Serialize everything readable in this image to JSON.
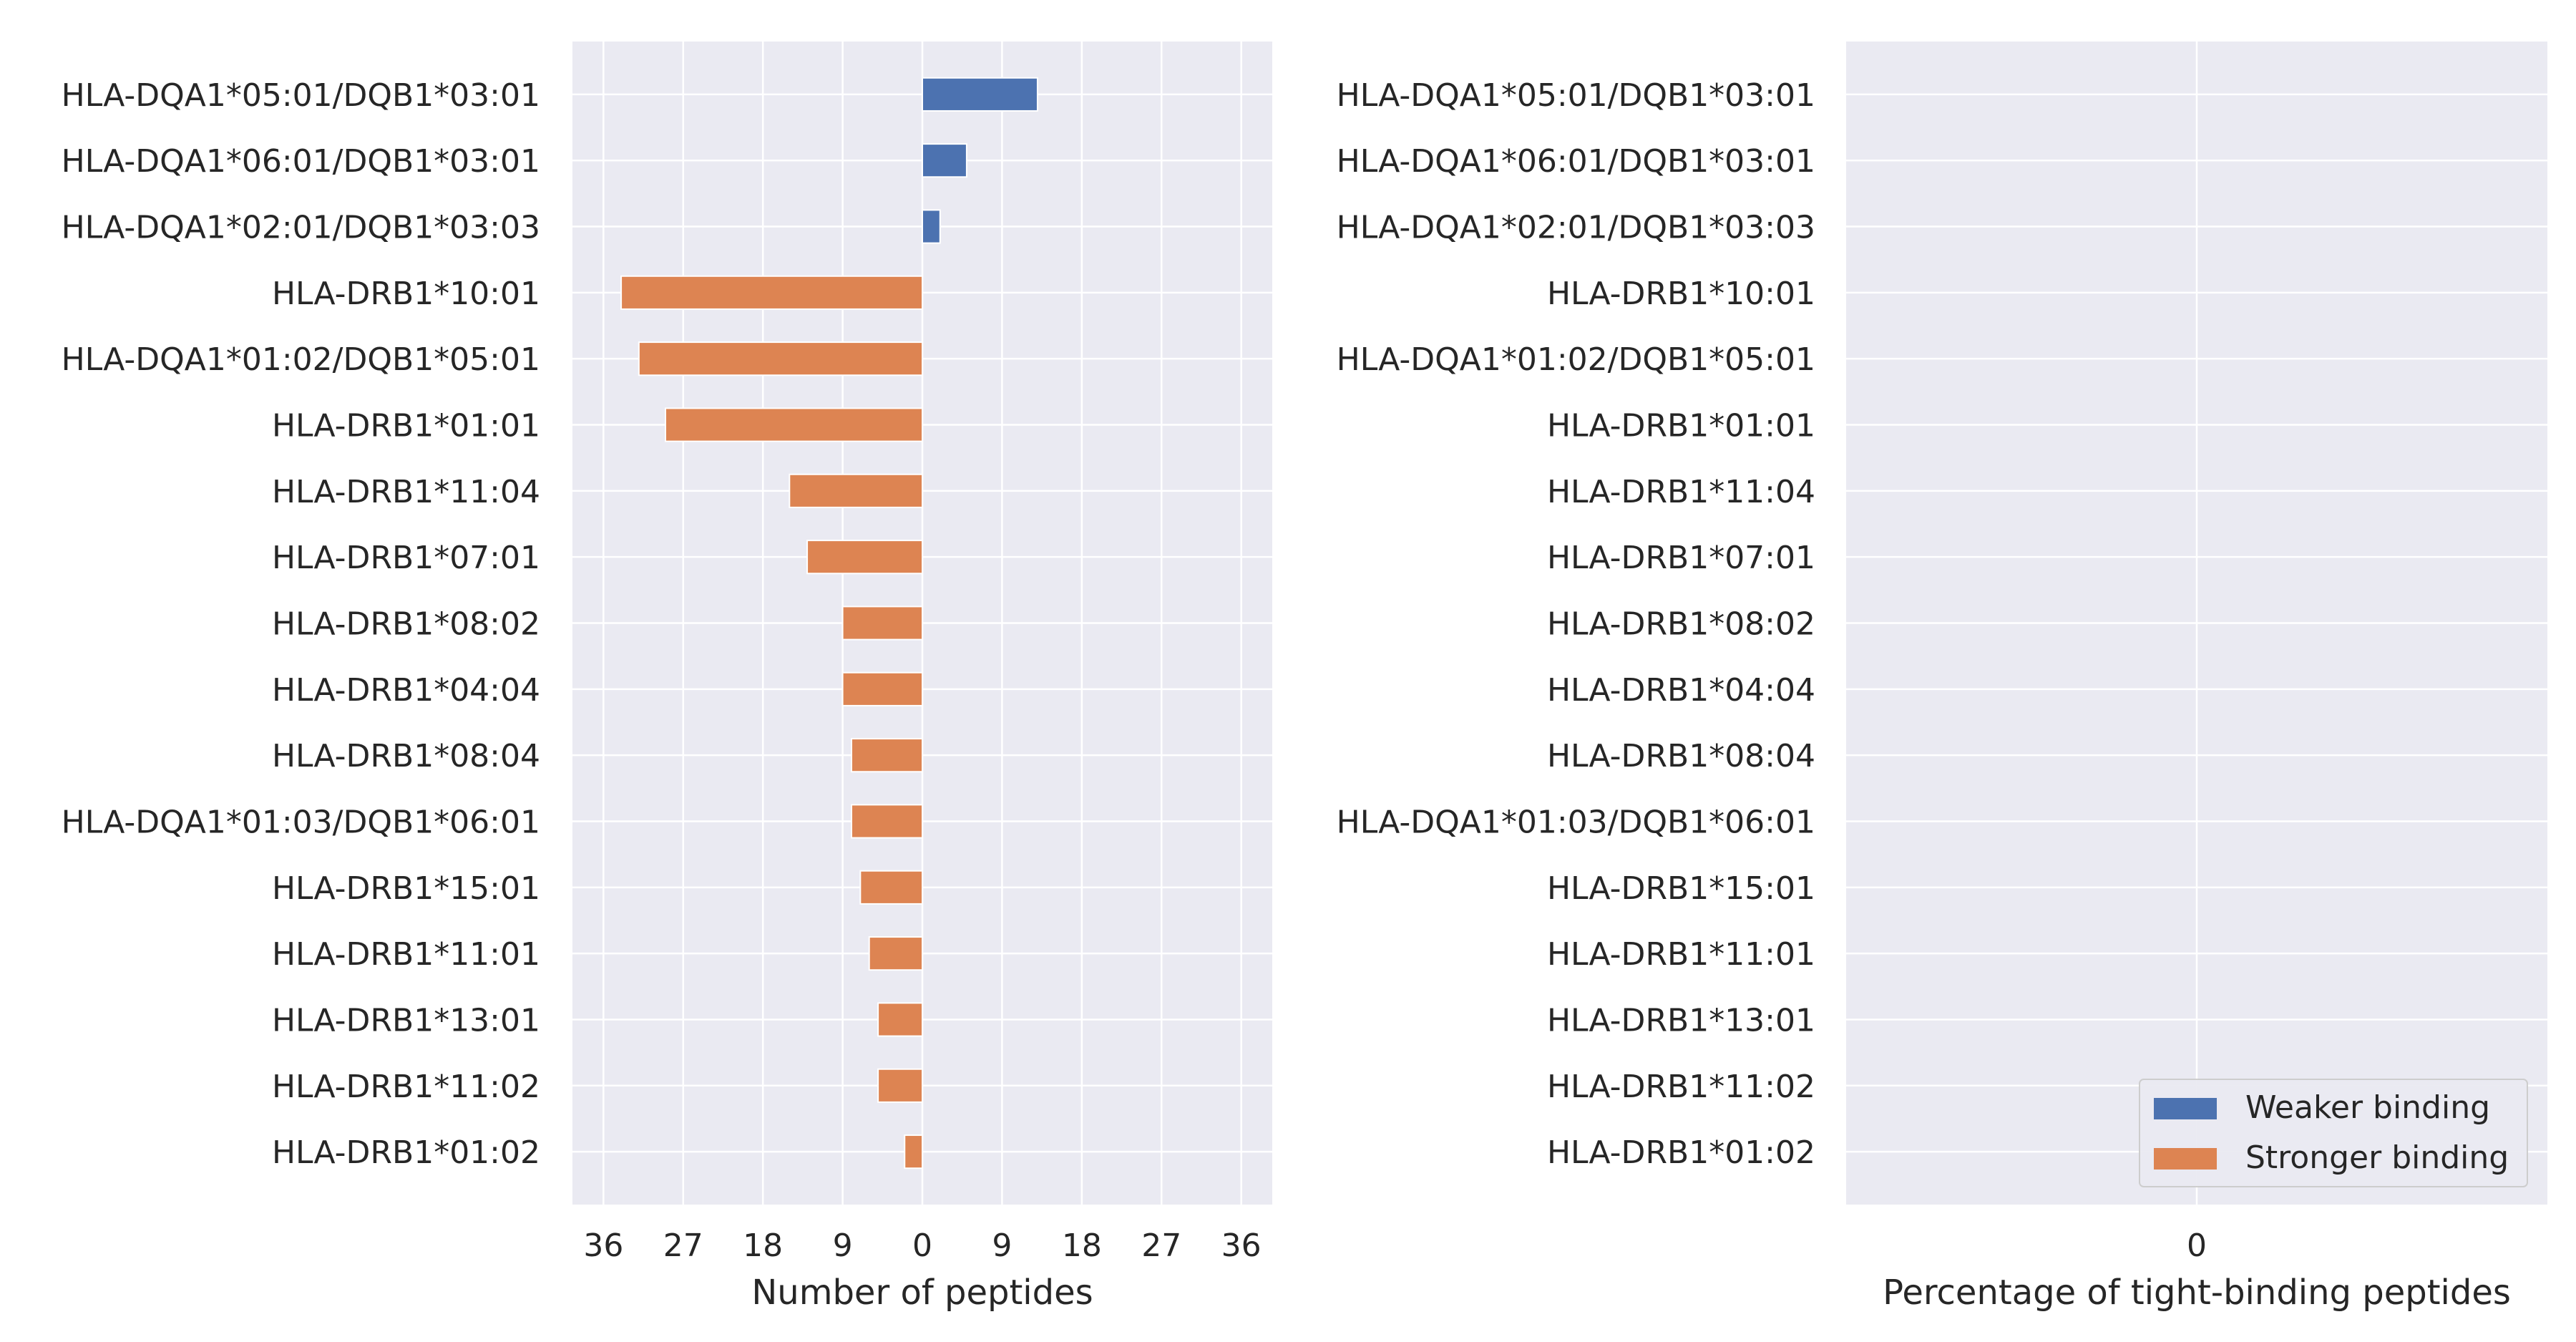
{
  "chart_data": [
    {
      "type": "bar",
      "orientation": "horizontal",
      "xlabel": "Number of peptides",
      "xlim": [
        -39.5,
        39.5
      ],
      "xticks": [
        -36,
        -27,
        -18,
        -9,
        0,
        9,
        18,
        27,
        36
      ],
      "xtick_labels": [
        "36",
        "27",
        "18",
        "9",
        "0",
        "9",
        "18",
        "27",
        "36"
      ],
      "grid": true,
      "categories": [
        "HLA-DQA1*05:01/DQB1*03:01",
        "HLA-DQA1*06:01/DQB1*03:01",
        "HLA-DQA1*02:01/DQB1*03:03",
        "HLA-DRB1*10:01",
        "HLA-DQA1*01:02/DQB1*05:01",
        "HLA-DRB1*01:01",
        "HLA-DRB1*11:04",
        "HLA-DRB1*07:01",
        "HLA-DRB1*08:02",
        "HLA-DRB1*04:04",
        "HLA-DRB1*08:04",
        "HLA-DQA1*01:03/DQB1*06:01",
        "HLA-DRB1*15:01",
        "HLA-DRB1*11:01",
        "HLA-DRB1*13:01",
        "HLA-DRB1*11:02",
        "HLA-DRB1*01:02"
      ],
      "series": [
        {
          "name": "Weaker binding",
          "color": "#4c72b0",
          "direction": "right",
          "values": [
            13,
            5,
            2,
            0,
            0,
            0,
            0,
            0,
            0,
            0,
            0,
            0,
            0,
            0,
            0,
            0,
            0
          ]
        },
        {
          "name": "Stronger binding",
          "color": "#dd8452",
          "direction": "left",
          "values": [
            0,
            0,
            0,
            34,
            32,
            29,
            15,
            13,
            9,
            9,
            8,
            8,
            7,
            6,
            5,
            5,
            2
          ]
        }
      ]
    },
    {
      "type": "bar",
      "orientation": "horizontal",
      "xlabel": "Percentage of tight-binding peptides",
      "xticks": [
        0
      ],
      "xtick_labels": [
        "0"
      ],
      "grid": true,
      "categories": [
        "HLA-DQA1*05:01/DQB1*03:01",
        "HLA-DQA1*06:01/DQB1*03:01",
        "HLA-DQA1*02:01/DQB1*03:03",
        "HLA-DRB1*10:01",
        "HLA-DQA1*01:02/DQB1*05:01",
        "HLA-DRB1*01:01",
        "HLA-DRB1*11:04",
        "HLA-DRB1*07:01",
        "HLA-DRB1*08:02",
        "HLA-DRB1*04:04",
        "HLA-DRB1*08:04",
        "HLA-DQA1*01:03/DQB1*06:01",
        "HLA-DRB1*15:01",
        "HLA-DRB1*11:01",
        "HLA-DRB1*13:01",
        "HLA-DRB1*11:02",
        "HLA-DRB1*01:02"
      ],
      "series": [],
      "legend": {
        "position": "lower-right",
        "entries": [
          {
            "label": "Weaker binding",
            "color": "#4c72b0"
          },
          {
            "label": "Stronger binding",
            "color": "#dd8452"
          }
        ]
      }
    }
  ],
  "style": {
    "plot_background": "#eaeaf2",
    "grid_color": "#ffffff",
    "text_color": "#262626"
  }
}
